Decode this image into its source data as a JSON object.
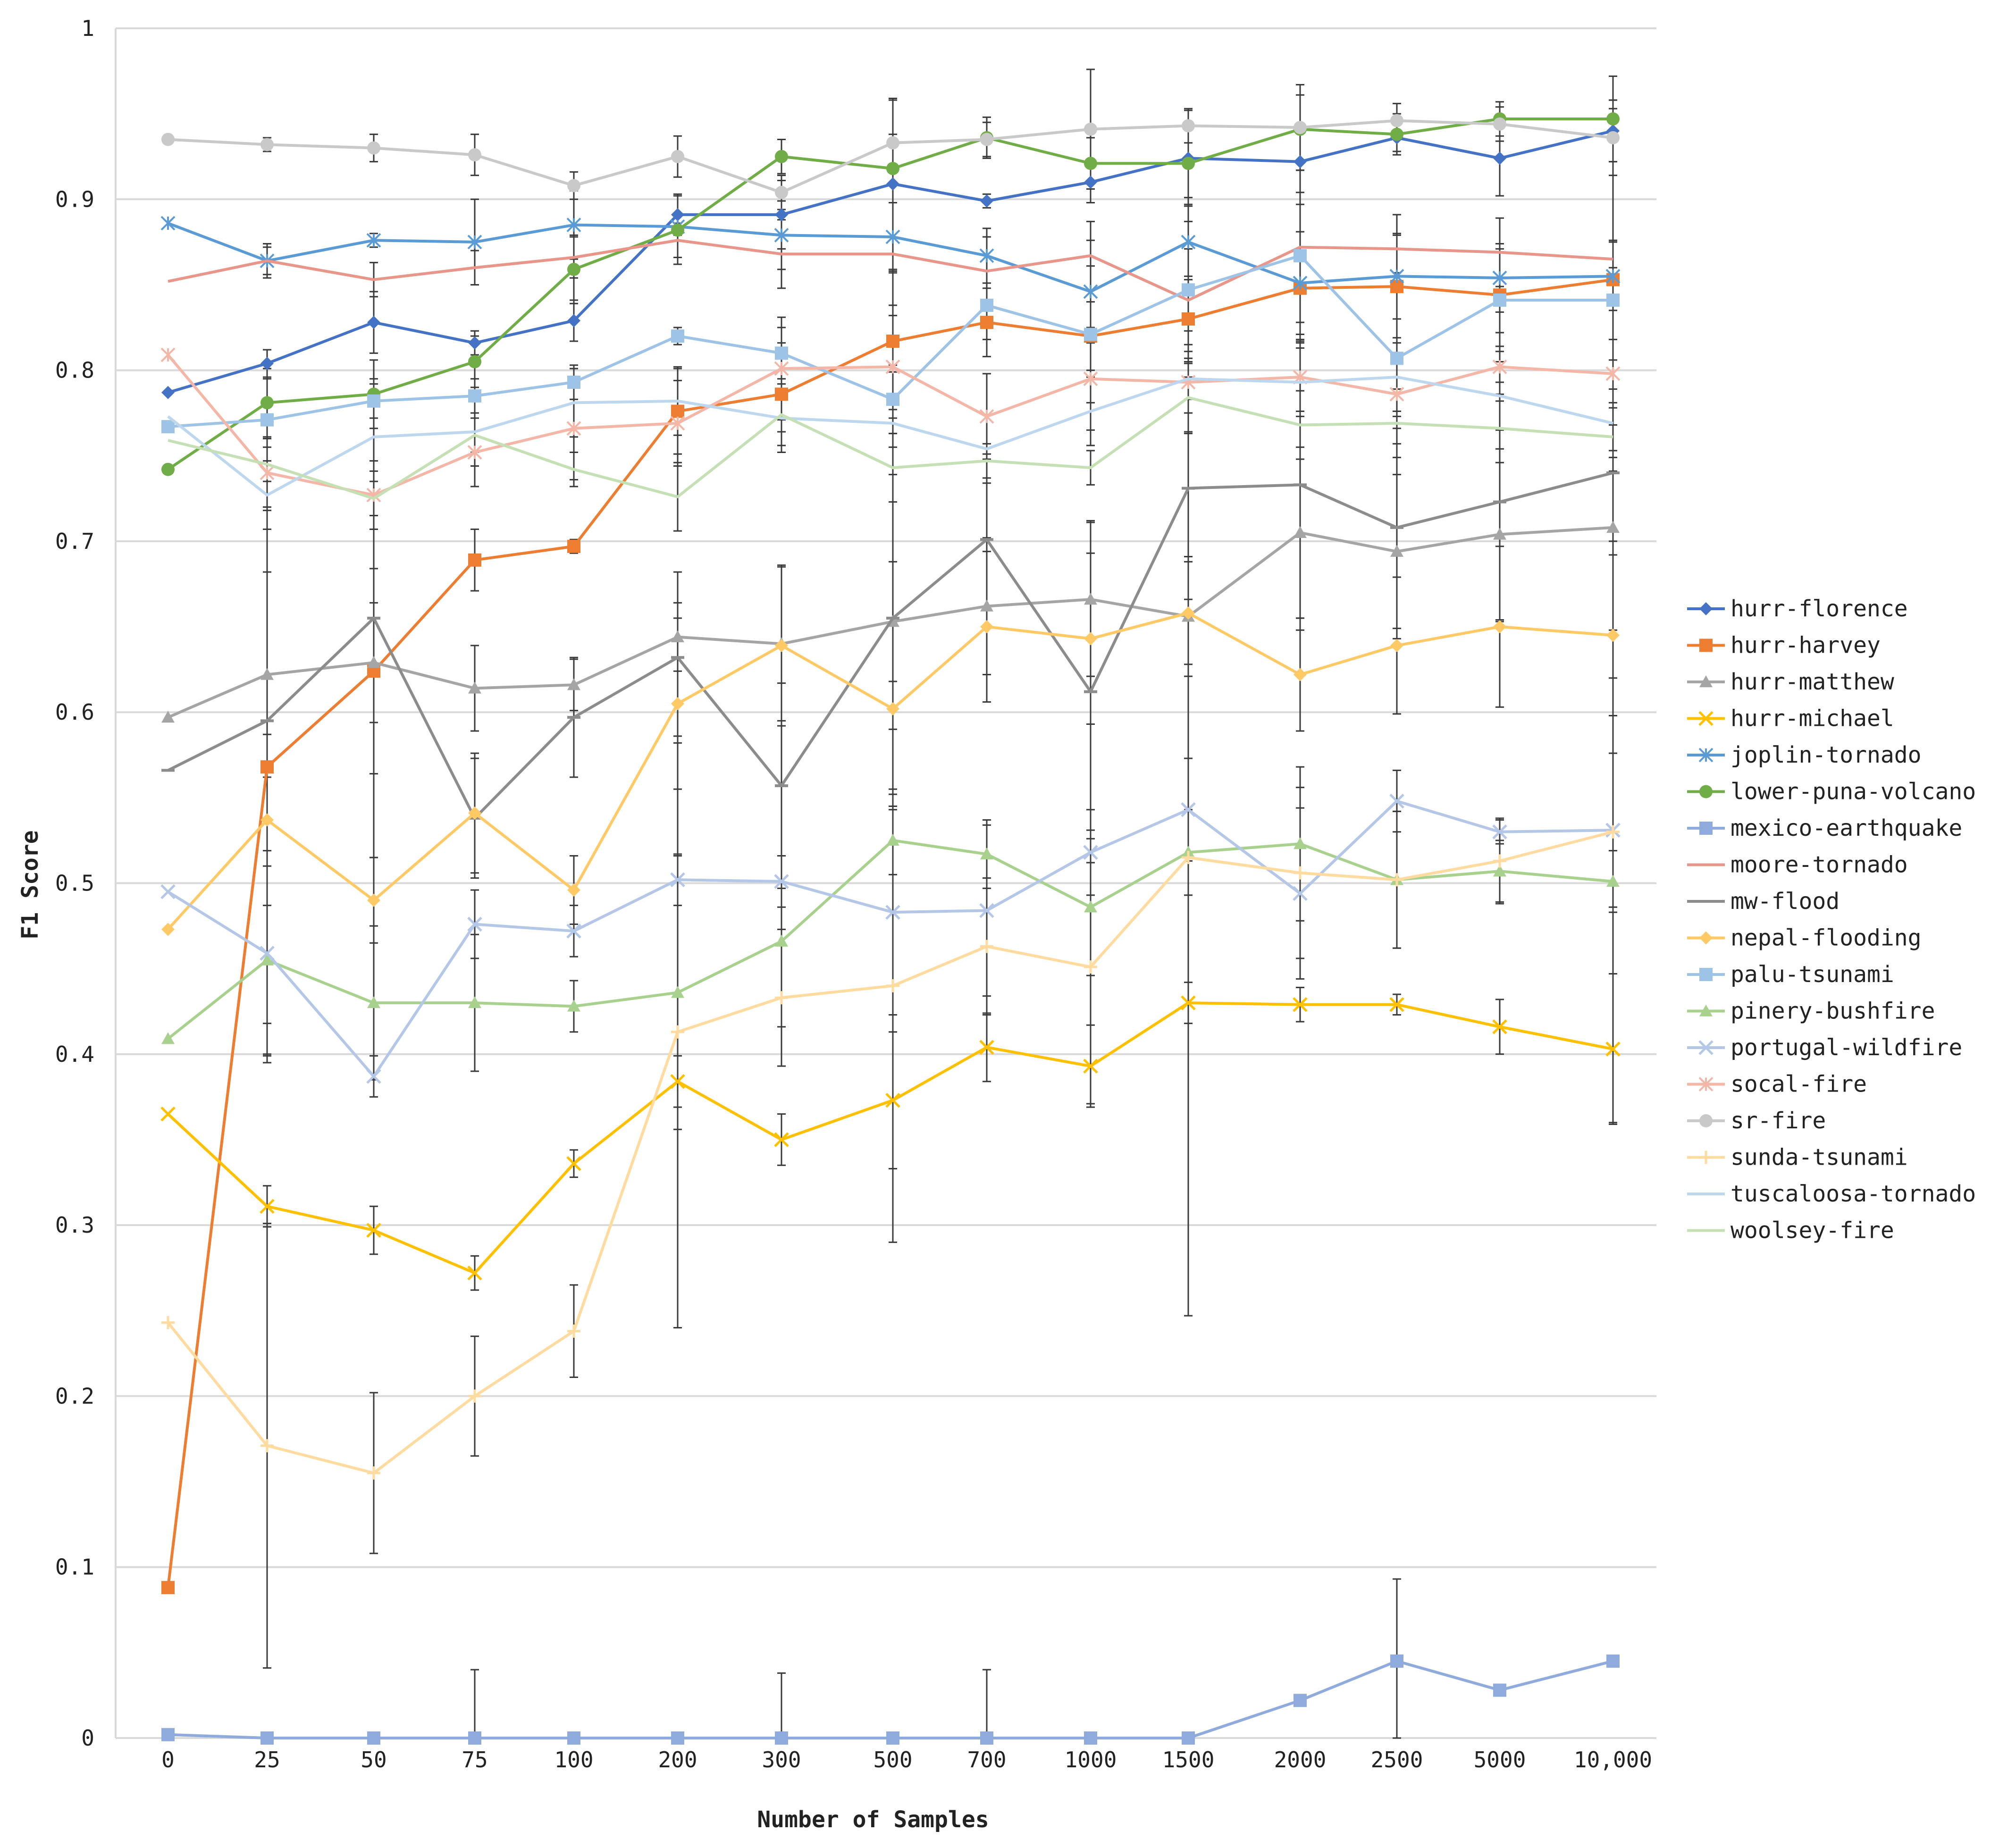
{
  "chart_data": {
    "type": "line",
    "title": "",
    "xlabel": "Number of Samples",
    "ylabel": "F1 Score",
    "ylim": [
      0,
      1
    ],
    "yticks": [
      "0",
      "0.1",
      "0.2",
      "0.3",
      "0.4",
      "0.5",
      "0.6",
      "0.7",
      "0.8",
      "0.9",
      "1"
    ],
    "categories": [
      "0",
      "25",
      "50",
      "75",
      "100",
      "200",
      "300",
      "500",
      "700",
      "1000",
      "1500",
      "2000",
      "2500",
      "5000",
      "10,000"
    ],
    "grid": true,
    "legend_position": "right",
    "error_bars": true,
    "series": [
      {
        "name": "hurr-florence",
        "color": "#4472C4",
        "marker": "diamond",
        "values": [
          0.787,
          0.804,
          0.828,
          0.816,
          0.829,
          0.891,
          0.891,
          0.909,
          0.899,
          0.91,
          0.924,
          0.922,
          0.936,
          0.924,
          0.94
        ],
        "errors": [
          0,
          0.008,
          0.018,
          0.007,
          0.012,
          0.012,
          0.02,
          0.05,
          0.004,
          0.012,
          0.028,
          0.018,
          0.008,
          0.022,
          0.018
        ]
      },
      {
        "name": "hurr-harvey",
        "color": "#ED7D31",
        "marker": "square",
        "values": [
          0.088,
          0.568,
          0.624,
          0.689,
          0.697,
          0.776,
          0.786,
          0.817,
          0.828,
          0.82,
          0.83,
          0.848,
          0.849,
          0.844,
          0.853
        ],
        "errors": [
          0,
          0.15,
          0.06,
          0.018,
          0.004,
          0.025,
          0.03,
          0.04,
          0.02,
          0.02,
          0.025,
          0.02,
          0.03,
          0.03,
          0.1
        ]
      },
      {
        "name": "hurr-matthew",
        "color": "#A5A5A5",
        "marker": "triangle",
        "values": [
          0.597,
          0.622,
          0.629,
          0.614,
          0.616,
          0.644,
          0.64,
          0.653,
          0.662,
          0.666,
          0.656,
          0.705,
          0.694,
          0.704,
          0.708
        ],
        "errors": [
          0,
          0.06,
          0.035,
          0.025,
          0.015,
          0.02,
          0.045,
          0.035,
          0.04,
          0.045,
          0.035,
          0.05,
          0.045,
          0.05,
          0.06
        ]
      },
      {
        "name": "hurr-michael",
        "color": "#FFC000",
        "marker": "x",
        "values": [
          0.365,
          0.311,
          0.297,
          0.272,
          0.336,
          0.384,
          0.35,
          0.373,
          0.404,
          0.393,
          0.43,
          0.429,
          0.429,
          0.416,
          0.403
        ],
        "errors": [
          0,
          0.012,
          0.014,
          0.01,
          0.008,
          0.015,
          0.015,
          0.04,
          0.02,
          0.024,
          0.012,
          0.01,
          0.006,
          0.016,
          0.044
        ]
      },
      {
        "name": "joplin-tornado",
        "color": "#5B9BD5",
        "marker": "asterisk",
        "values": [
          0.886,
          0.864,
          0.876,
          0.875,
          0.885,
          0.884,
          0.879,
          0.878,
          0.867,
          0.846,
          0.875,
          0.851,
          0.855,
          0.854,
          0.855
        ],
        "errors": [
          0,
          0.01,
          0.004,
          0.025,
          0.02,
          0.018,
          0.02,
          0.02,
          0.016,
          0.03,
          0.022,
          0.03,
          0.025,
          0.02,
          0.02
        ]
      },
      {
        "name": "lower-puna-volcano",
        "color": "#70AD47",
        "marker": "circle",
        "values": [
          0.742,
          0.781,
          0.786,
          0.805,
          0.859,
          0.882,
          0.925,
          0.918,
          0.936,
          0.921,
          0.921,
          0.941,
          0.938,
          0.947,
          0.947
        ],
        "errors": [
          0,
          0.02,
          0.02,
          0.015,
          0.02,
          0.02,
          0.01,
          0.02,
          0.012,
          0.015,
          0.02,
          0.02,
          0.012,
          0.01,
          0.025
        ]
      },
      {
        "name": "mexico-earthquake",
        "color": "#8FAADC",
        "marker": "square",
        "values": [
          0.002,
          0,
          0,
          0,
          0,
          0,
          0,
          0,
          0,
          0,
          0,
          0.022,
          0.045,
          0.028,
          0.045
        ],
        "errors": [
          0,
          0,
          0,
          0.04,
          0,
          0,
          0.038,
          0,
          0.04,
          0,
          0,
          0,
          0.048,
          0,
          0
        ]
      },
      {
        "name": "moore-tornado",
        "color": "#E8958A",
        "marker": "none",
        "values": [
          0.852,
          0.864,
          0.853,
          0.86,
          0.866,
          0.876,
          0.868,
          0.868,
          0.858,
          0.867,
          0.841,
          0.872,
          0.871,
          0.869,
          0.865
        ],
        "errors": [
          0,
          0.008,
          0.01,
          0.01,
          0.012,
          0.01,
          0.02,
          0.03,
          0.02,
          0.02,
          0.03,
          0.025,
          0.02,
          0.02,
          0.01
        ]
      },
      {
        "name": "mw-flood",
        "color": "#8C8C8C",
        "marker": "dash",
        "values": [
          0.566,
          0.595,
          0.655,
          0.538,
          0.597,
          0.632,
          0.557,
          0.655,
          0.701,
          0.612,
          0.731,
          0.733,
          0.708,
          0.723,
          0.74
        ],
        "errors": [
          0,
          0.2,
          0.14,
          0.035,
          0.035,
          0.05,
          0.06,
          0.1,
          0.05,
          0.1,
          0.065,
          0.085,
          0.065,
          0.07,
          0.12
        ]
      },
      {
        "name": "nepal-flooding",
        "color": "#FFC966",
        "marker": "diamond",
        "values": [
          0.473,
          0.537,
          0.49,
          0.541,
          0.496,
          0.605,
          0.639,
          0.602,
          0.65,
          0.643,
          0.658,
          0.622,
          0.639,
          0.65,
          0.645
        ],
        "errors": [
          0,
          0.05,
          0.025,
          0.035,
          0.02,
          0.05,
          0.047,
          0.05,
          0.044,
          0.05,
          0.03,
          0.033,
          0.04,
          0.047,
          0.047
        ]
      },
      {
        "name": "palu-tsunami",
        "color": "#9DC3E6",
        "marker": "square",
        "values": [
          0.767,
          0.771,
          0.782,
          0.785,
          0.793,
          0.82,
          0.81,
          0.783,
          0.838,
          0.821,
          0.847,
          0.867,
          0.807,
          0.841,
          0.841
        ],
        "errors": [
          0,
          0.01,
          0.01,
          0.01,
          0.01,
          0.005,
          0.015,
          0.02,
          0.02,
          0.04,
          0.04,
          0.05,
          0.05,
          0.03,
          0.035
        ]
      },
      {
        "name": "pinery-bushfire",
        "color": "#A9D18E",
        "marker": "triangle",
        "values": [
          0.409,
          0.455,
          0.43,
          0.43,
          0.428,
          0.436,
          0.466,
          0.525,
          0.517,
          0.486,
          0.518,
          0.523,
          0.502,
          0.507,
          0.501
        ],
        "errors": [
          0,
          0.055,
          0.045,
          0.04,
          0.015,
          0.08,
          0.05,
          0.02,
          0.02,
          0.04,
          0.025,
          0.045,
          0.04,
          0.018,
          0.018
        ]
      },
      {
        "name": "portugal-wildfire",
        "color": "#B4C7E7",
        "marker": "x",
        "values": [
          0.495,
          0.459,
          0.387,
          0.476,
          0.472,
          0.502,
          0.501,
          0.483,
          0.484,
          0.518,
          0.543,
          0.494,
          0.548,
          0.53,
          0.531
        ],
        "errors": [
          0,
          0.06,
          0.012,
          0.02,
          0.015,
          0.015,
          0.015,
          0.06,
          0.05,
          0.025,
          0.03,
          0.05,
          0.018,
          0.007,
          0.045
        ]
      },
      {
        "name": "socal-fire",
        "color": "#F4B6A6",
        "marker": "asterisk",
        "values": [
          0.809,
          0.74,
          0.727,
          0.752,
          0.766,
          0.769,
          0.801,
          0.802,
          0.773,
          0.795,
          0.793,
          0.796,
          0.786,
          0.802,
          0.798
        ],
        "errors": [
          0,
          0.02,
          0.02,
          0.02,
          0.03,
          0.025,
          0.03,
          0.03,
          0.025,
          0.03,
          0.03,
          0.02,
          0.02,
          0.02,
          0.02
        ]
      },
      {
        "name": "sr-fire",
        "color": "#C9C9C9",
        "marker": "circle",
        "values": [
          0.935,
          0.932,
          0.93,
          0.926,
          0.908,
          0.925,
          0.904,
          0.933,
          0.935,
          0.941,
          0.943,
          0.942,
          0.946,
          0.944,
          0.936
        ],
        "errors": [
          0,
          0.004,
          0.008,
          0.012,
          0.008,
          0.012,
          0.01,
          0.025,
          0.01,
          0.035,
          0.01,
          0.025,
          0.01,
          0.01,
          0.022
        ]
      },
      {
        "name": "sunda-tsunami",
        "color": "#FFDBA0",
        "marker": "plus",
        "values": [
          0.243,
          0.171,
          0.155,
          0.2,
          0.238,
          0.413,
          0.433,
          0.44,
          0.463,
          0.451,
          0.515,
          0.506,
          0.502,
          0.513,
          0.53
        ],
        "errors": [
          0,
          0.13,
          0.047,
          0.035,
          0.027,
          0.173,
          0.04,
          0.15,
          0.04,
          0.08,
          0.268,
          0.05,
          0.04,
          0.025,
          0.17
        ]
      },
      {
        "name": "tuscaloosa-tornado",
        "color": "#BDD7EE",
        "marker": "none",
        "values": [
          0.773,
          0.727,
          0.761,
          0.764,
          0.781,
          0.782,
          0.772,
          0.769,
          0.754,
          0.776,
          0.795,
          0.793,
          0.796,
          0.785,
          0.769
        ],
        "errors": [
          0,
          0.02,
          0.02,
          0.02,
          0.02,
          0.02,
          0.02,
          0.03,
          0.02,
          0.02,
          0.02,
          0.02,
          0.02,
          0.02,
          0.02
        ]
      },
      {
        "name": "woolsey-fire",
        "color": "#C5E0B4",
        "marker": "none",
        "values": [
          0.759,
          0.745,
          0.725,
          0.762,
          0.742,
          0.726,
          0.774,
          0.743,
          0.747,
          0.743,
          0.784,
          0.768,
          0.769,
          0.766,
          0.761
        ],
        "errors": [
          0,
          0.01,
          0.01,
          0.01,
          0.01,
          0.02,
          0.01,
          0.02,
          0.01,
          0.01,
          0.02,
          0.02,
          0.02,
          0.02,
          0.02
        ]
      }
    ]
  }
}
